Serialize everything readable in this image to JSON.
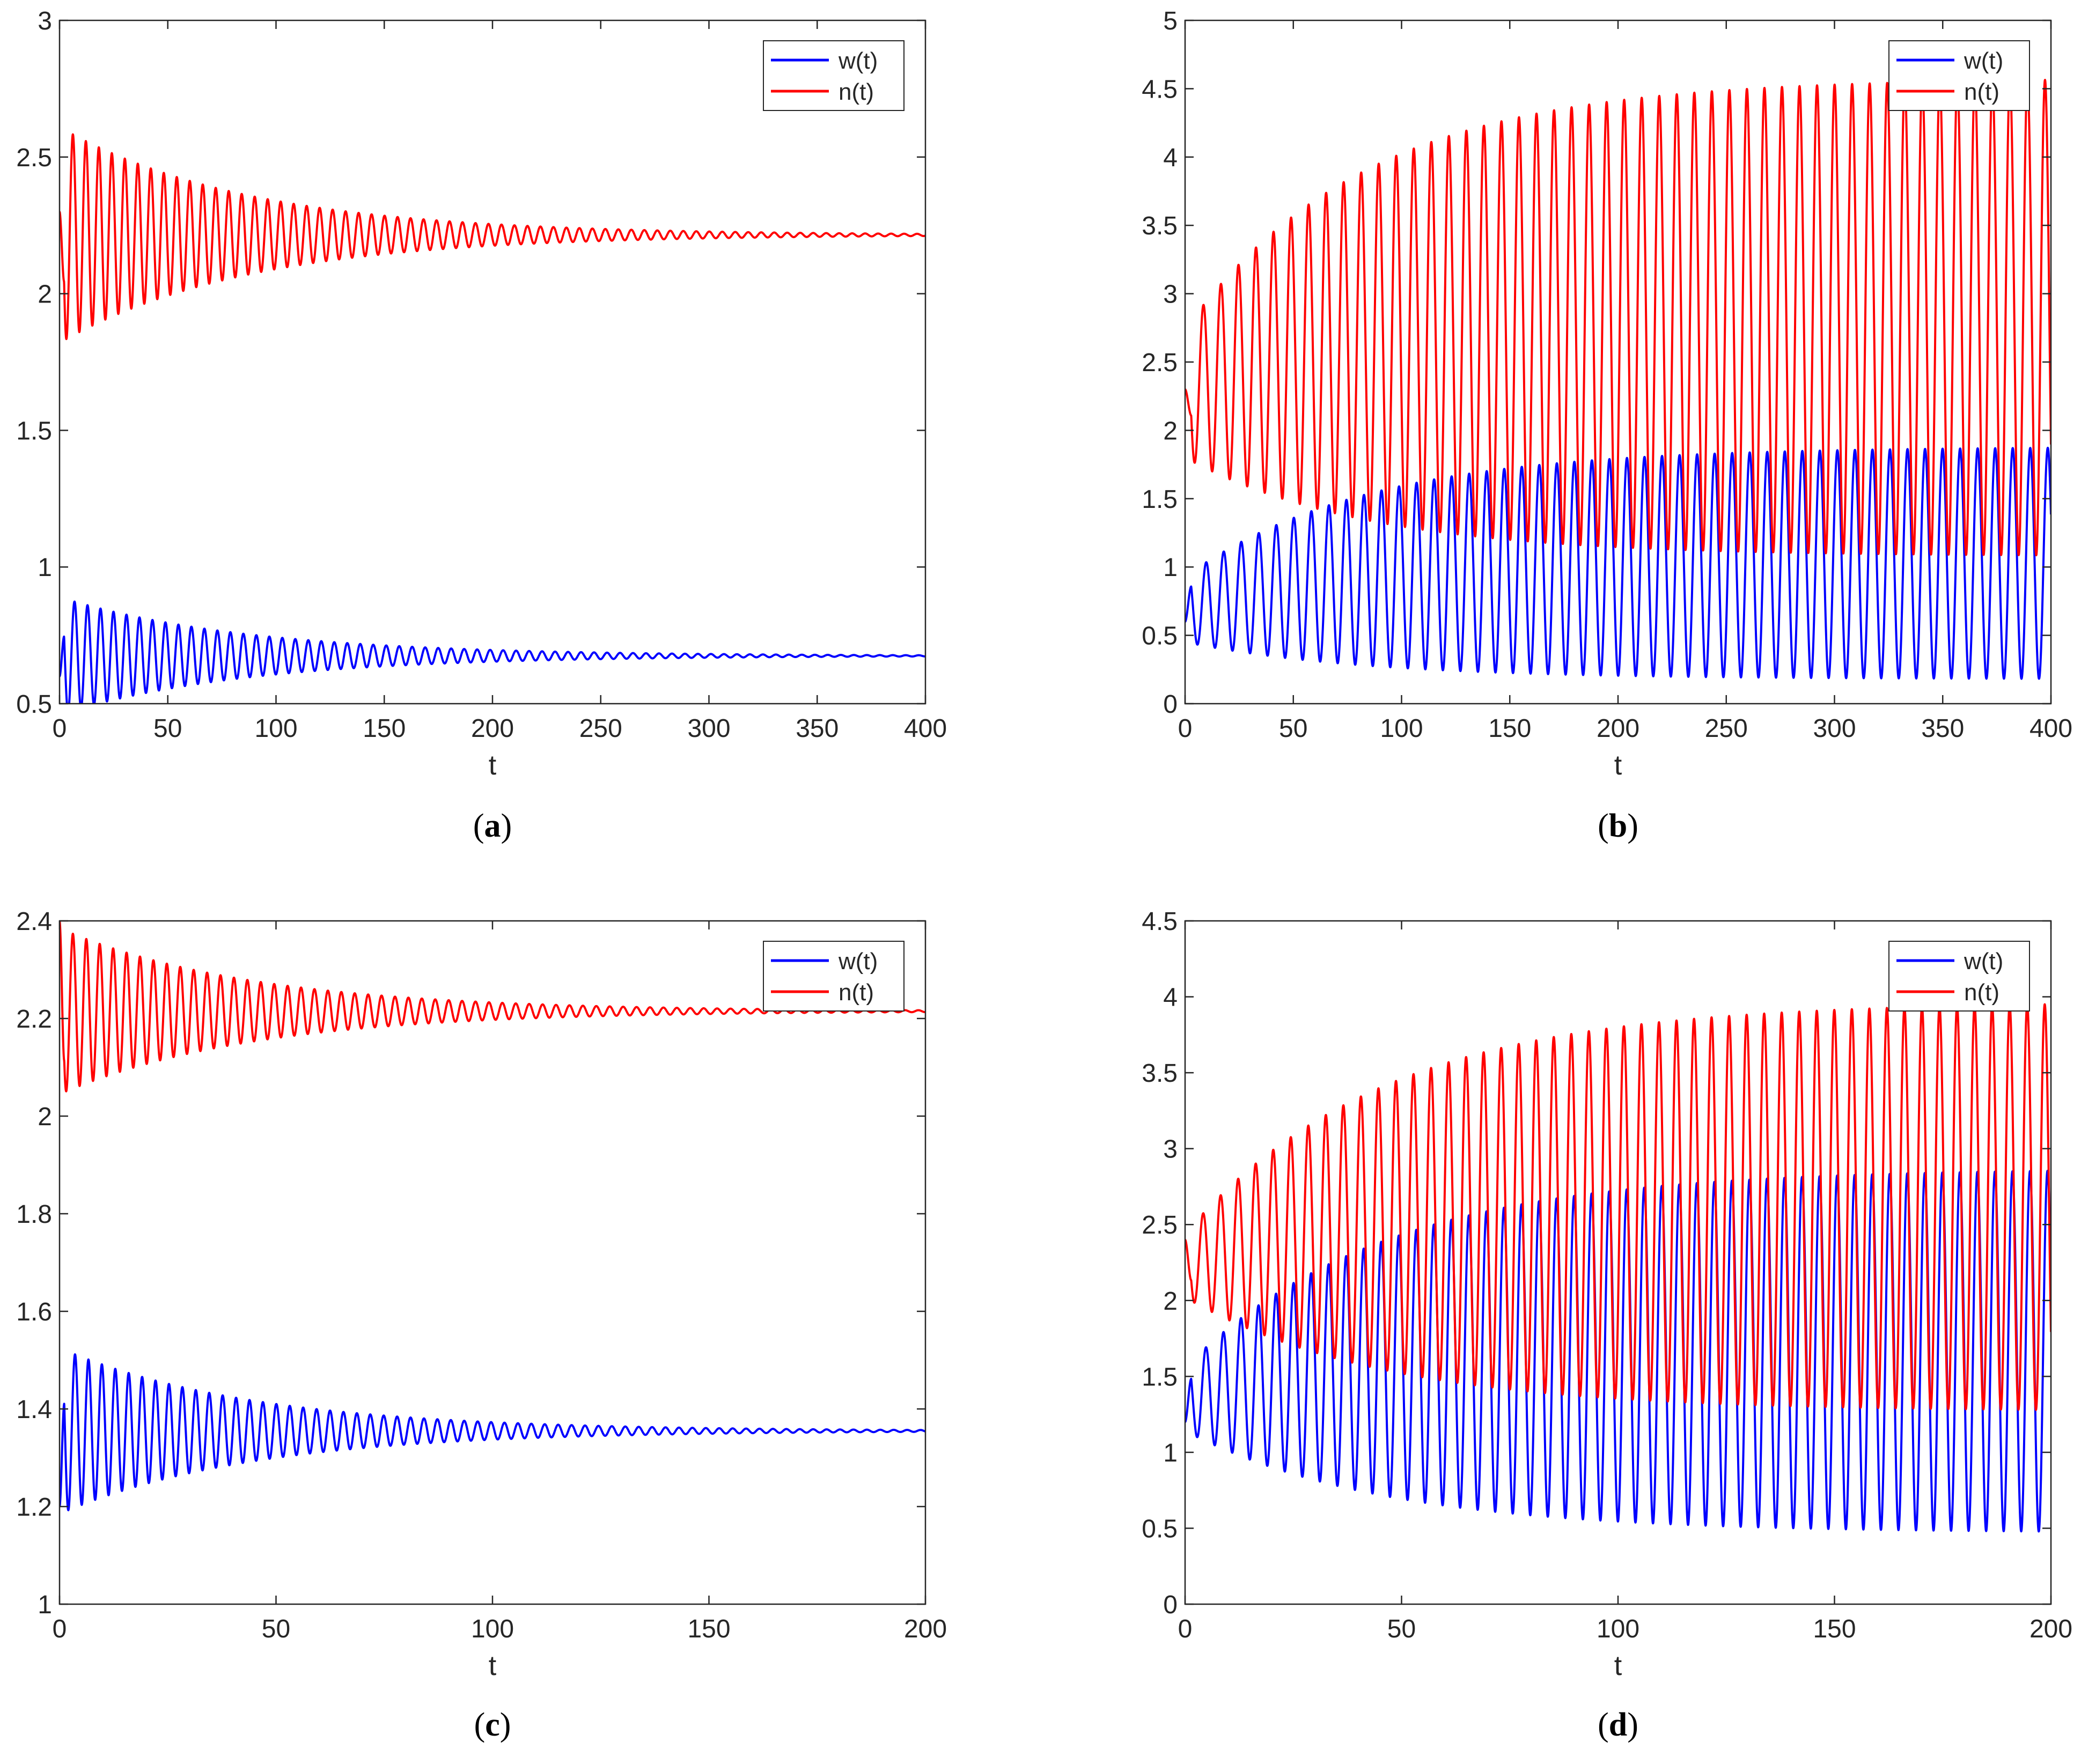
{
  "colors": {
    "w": "#0000ff",
    "n": "#ff0000",
    "axis": "#262626"
  },
  "chart_data": [
    {
      "type": "line",
      "panel": "a",
      "caption_open": "(",
      "caption_letter": "a",
      "caption_close": ")",
      "xlabel": "t",
      "ylabel": "",
      "xlim": [
        0,
        400
      ],
      "ylim": [
        0.5,
        3
      ],
      "xticks": [
        0,
        50,
        100,
        150,
        200,
        250,
        300,
        350,
        400
      ],
      "xtick_labels": [
        "0",
        "50",
        "100",
        "150",
        "200",
        "250",
        "300",
        "350",
        "400"
      ],
      "yticks": [
        0.5,
        1,
        1.5,
        2,
        2.5,
        3
      ],
      "ytick_labels": [
        "0.5",
        "1",
        "1.5",
        "2",
        "2.5",
        "3"
      ],
      "legend_position": "top-right",
      "series": [
        {
          "name": "w(t)",
          "color": "#0000ff",
          "x0": 0,
          "y0": 0.6,
          "equilibrium": 0.675,
          "amp0": 0.215,
          "decay": 0.0115,
          "amp_growth": 0,
          "amp_final": 0,
          "period": 6.0,
          "phase": 0.6,
          "x_end": 400
        },
        {
          "name": "n(t)",
          "color": "#ff0000",
          "x0": 0,
          "y0": 2.3,
          "equilibrium": 2.215,
          "amp0": 0.395,
          "decay": 0.0115,
          "amp_growth": 0,
          "amp_final": 0,
          "period": 6.0,
          "phase": 1.4,
          "x_end": 400
        }
      ]
    },
    {
      "type": "line",
      "panel": "b",
      "caption_open": "(",
      "caption_letter": "b",
      "caption_close": ")",
      "xlabel": "t",
      "ylabel": "",
      "xlim": [
        0,
        400
      ],
      "ylim": [
        0,
        5
      ],
      "xticks": [
        0,
        50,
        100,
        150,
        200,
        250,
        300,
        350,
        400
      ],
      "xtick_labels": [
        "0",
        "50",
        "100",
        "150",
        "200",
        "250",
        "300",
        "350",
        "400"
      ],
      "yticks": [
        0,
        0.5,
        1,
        1.5,
        2,
        2.5,
        3,
        3.5,
        4,
        4.5,
        5
      ],
      "ytick_labels": [
        "0",
        "0.5",
        "1",
        "1.5",
        "2",
        "2.5",
        "3",
        "3.5",
        "4",
        "4.5",
        "5"
      ],
      "legend_position": "top-right",
      "series": [
        {
          "name": "w(t)",
          "color": "#0000ff",
          "x0": 0,
          "y0": 0.6,
          "equilibrium_start": 0.69,
          "equilibrium_end": 1.03,
          "amp0": 0.24,
          "amp_final": 0.85,
          "growth_rate": 0.012,
          "period": 8.1,
          "phase": 0.3,
          "x_end": 400
        },
        {
          "name": "n(t)",
          "color": "#ff0000",
          "x0": 0,
          "y0": 2.3,
          "equilibrium_start": 2.27,
          "equilibrium_end": 2.83,
          "amp0": 0.47,
          "amp_final": 1.75,
          "growth_rate": 0.012,
          "period": 8.1,
          "phase": 1.3,
          "x_end": 400
        }
      ]
    },
    {
      "type": "line",
      "panel": "c",
      "caption_open": "(",
      "caption_letter": "c",
      "caption_close": ")",
      "xlabel": "t",
      "ylabel": "",
      "xlim": [
        0,
        200
      ],
      "ylim": [
        1,
        2.4
      ],
      "xticks": [
        0,
        50,
        100,
        150,
        200
      ],
      "xtick_labels": [
        "0",
        "50",
        "100",
        "150",
        "200"
      ],
      "yticks": [
        1,
        1.2,
        1.4,
        1.6,
        1.8,
        2,
        2.2,
        2.4
      ],
      "ytick_labels": [
        "1",
        "1.2",
        "1.4",
        "1.6",
        "1.8",
        "2",
        "2.2",
        "2.4"
      ],
      "legend_position": "top-right",
      "series": [
        {
          "name": "w(t)",
          "color": "#0000ff",
          "x0": 0,
          "y0": 1.2,
          "equilibrium": 1.355,
          "amp0": 0.17,
          "decay": 0.0225,
          "amp_growth": 0,
          "amp_final": 0,
          "period": 3.1,
          "phase": 0.6,
          "x_end": 200
        },
        {
          "name": "n(t)",
          "color": "#ff0000",
          "x0": 0,
          "y0": 2.4,
          "equilibrium": 2.215,
          "amp0": 0.17,
          "decay": 0.0225,
          "amp_growth": 0,
          "amp_final": 0,
          "period": 3.1,
          "phase": 1.6,
          "x_end": 200
        }
      ]
    },
    {
      "type": "line",
      "panel": "d",
      "caption_open": "(",
      "caption_letter": "d",
      "caption_close": ")",
      "xlabel": "t",
      "ylabel": "",
      "xlim": [
        0,
        200
      ],
      "ylim": [
        0,
        4.5
      ],
      "xticks": [
        0,
        50,
        100,
        150,
        200
      ],
      "xtick_labels": [
        "0",
        "50",
        "100",
        "150",
        "200"
      ],
      "yticks": [
        0,
        0.5,
        1,
        1.5,
        2,
        2.5,
        3,
        3.5,
        4,
        4.5
      ],
      "ytick_labels": [
        "0",
        "0.5",
        "1",
        "1.5",
        "2",
        "2.5",
        "3",
        "3.5",
        "4",
        "4.5"
      ],
      "legend_position": "top-right",
      "series": [
        {
          "name": "w(t)",
          "color": "#0000ff",
          "x0": 0,
          "y0": 1.2,
          "equilibrium_start": 1.35,
          "equilibrium_end": 1.67,
          "amp0": 0.21,
          "amp_final": 1.2,
          "growth_rate": 0.022,
          "period": 4.05,
          "phase": 0.4,
          "x_end": 200
        },
        {
          "name": "n(t)",
          "color": "#ff0000",
          "x0": 0,
          "y0": 2.4,
          "equilibrium_start": 2.23,
          "equilibrium_end": 2.62,
          "amp0": 0.21,
          "amp_final": 1.35,
          "growth_rate": 0.022,
          "period": 4.05,
          "phase": 1.4,
          "x_end": 200
        }
      ]
    }
  ]
}
